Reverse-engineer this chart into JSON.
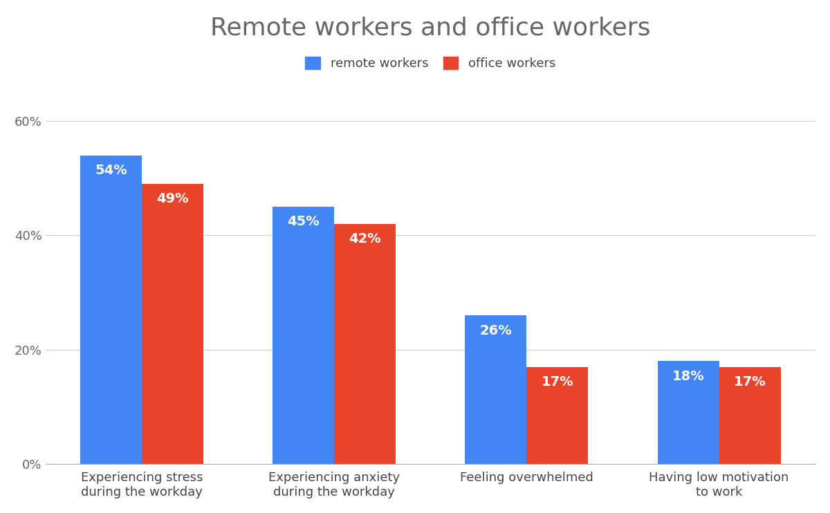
{
  "title": "Remote workers and office workers",
  "categories": [
    "Experiencing stress\nduring the workday",
    "Experiencing anxiety\nduring the workday",
    "Feeling overwhelmed",
    "Having low motivation\nto work"
  ],
  "remote_values": [
    54,
    45,
    26,
    18
  ],
  "office_values": [
    49,
    42,
    17,
    17
  ],
  "remote_color": "#4285F4",
  "office_color": "#E8442A",
  "bar_label_color": "#FFFFFF",
  "title_color": "#666666",
  "legend_labels": [
    "remote workers",
    "office workers"
  ],
  "yticks": [
    0,
    20,
    40,
    60
  ],
  "ytick_labels": [
    "0%",
    "20%",
    "40%",
    "60%"
  ],
  "ylim": [
    0,
    65
  ],
  "bar_width": 0.32,
  "title_fontsize": 26,
  "tick_fontsize": 13,
  "legend_fontsize": 13,
  "bar_label_fontsize": 14,
  "background_color": "#FFFFFF",
  "grid_color": "#CCCCCC"
}
